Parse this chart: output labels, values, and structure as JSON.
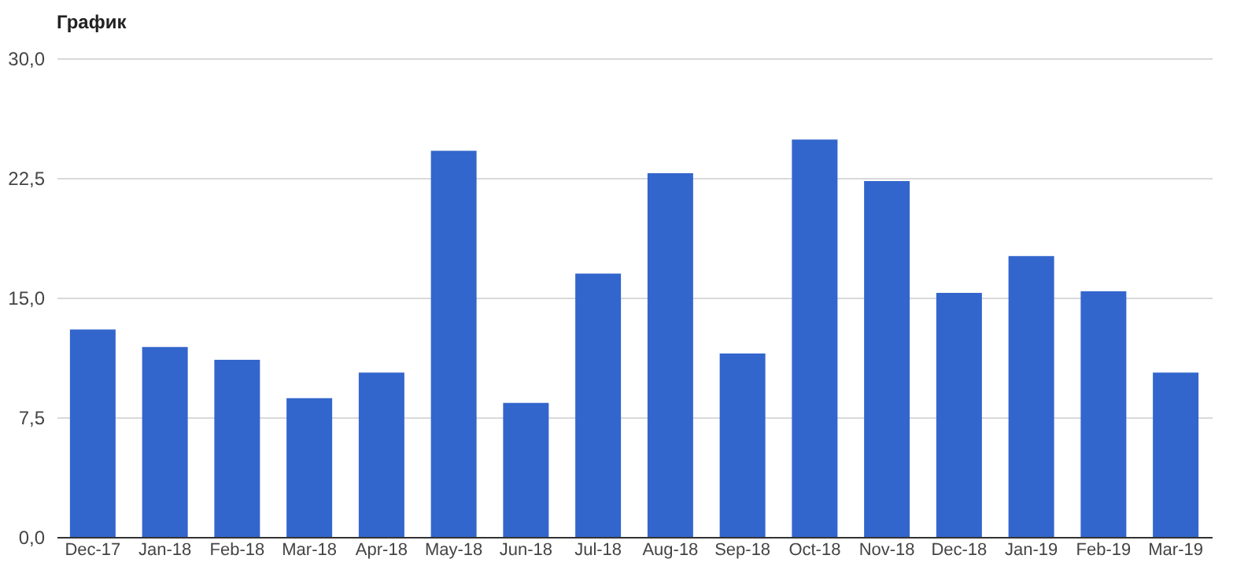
{
  "chart_data": {
    "type": "bar",
    "title": "График",
    "categories": [
      "Dec-17",
      "Jan-18",
      "Feb-18",
      "Mar-18",
      "Apr-18",
      "May-18",
      "Jun-18",
      "Jul-18",
      "Aug-18",
      "Sep-18",
      "Oct-18",
      "Nov-18",
      "Dec-18",
      "Jan-19",
      "Feb-19",
      "Mar-19"
    ],
    "values": [
      13.0,
      11.9,
      11.1,
      8.7,
      10.3,
      24.2,
      8.4,
      16.5,
      22.8,
      11.5,
      24.9,
      22.3,
      15.3,
      17.6,
      15.4,
      10.3
    ],
    "color": "#3366cc",
    "ylim": [
      0,
      30
    ],
    "yticks": [
      {
        "value": 0,
        "label": "0,0"
      },
      {
        "value": 7.5,
        "label": "7,5"
      },
      {
        "value": 15,
        "label": "15,0"
      },
      {
        "value": 22.5,
        "label": "22,5"
      },
      {
        "value": 30,
        "label": "30,0"
      }
    ],
    "grid": "y"
  }
}
